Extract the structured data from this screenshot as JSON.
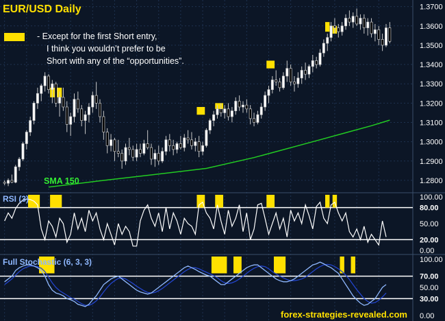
{
  "header": {
    "title": "EUR/USD   Daily"
  },
  "note": {
    "lines": [
      "-  Except for the first Short entry,",
      "I think you wouldn’t  prefer to be",
      "Short with any of the “opportunities”."
    ]
  },
  "labels": {
    "sma": "SMA 150",
    "rsi": "RSI (3)",
    "stochastic": "Full Stochastic (6, 3, 3)",
    "watermark": "forex-strategies-revealed.com"
  },
  "colors": {
    "background": "#0c1626",
    "grid": "#1e3250",
    "up_candle": "#ffffff",
    "down_candle": "#000000",
    "highlight": "#ffe000",
    "sma": "#22cc22",
    "rsi_line": "#ffffff",
    "stoch_k": "#8fb8ff",
    "stoch_d": "#2244cc",
    "axis_text": "#ffffff"
  },
  "chart_data": [
    {
      "type": "candlestick",
      "title": "EUR/USD   Daily",
      "ylim": [
        1.275,
        1.372
      ],
      "y_ticks": [
        "1.3700",
        "1.3600",
        "1.3500",
        "1.3400",
        "1.3300",
        "1.3200",
        "1.3100",
        "1.3000",
        "1.2900",
        "1.2800"
      ],
      "sma_series_name": "SMA 150",
      "sma_anchor_points": [
        [
          12,
          1.2765
        ],
        [
          25,
          1.2795
        ],
        [
          40,
          1.2828
        ],
        [
          55,
          1.2862
        ],
        [
          68,
          1.2918
        ],
        [
          85,
          1.3005
        ],
        [
          100,
          1.3083
        ],
        [
          105,
          1.3112
        ]
      ],
      "ohlc": [
        [
          1.279,
          1.28,
          1.2775,
          1.2785
        ],
        [
          1.2785,
          1.281,
          1.277,
          1.28
        ],
        [
          1.28,
          1.283,
          1.2785,
          1.279
        ],
        [
          1.279,
          1.288,
          1.2785,
          1.287
        ],
        [
          1.287,
          1.292,
          1.285,
          1.291
        ],
        [
          1.291,
          1.3,
          1.29,
          1.299
        ],
        [
          1.299,
          1.306,
          1.296,
          1.305
        ],
        [
          1.305,
          1.313,
          1.303,
          1.311
        ],
        [
          1.311,
          1.321,
          1.309,
          1.32
        ],
        [
          1.32,
          1.328,
          1.317,
          1.325
        ],
        [
          1.325,
          1.33,
          1.321,
          1.329
        ],
        [
          1.329,
          1.336,
          1.326,
          1.334
        ],
        [
          1.334,
          1.335,
          1.325,
          1.327
        ],
        [
          1.327,
          1.332,
          1.32,
          1.33
        ],
        [
          1.33,
          1.331,
          1.318,
          1.32
        ],
        [
          1.32,
          1.326,
          1.313,
          1.323
        ],
        [
          1.323,
          1.328,
          1.316,
          1.318
        ],
        [
          1.318,
          1.321,
          1.305,
          1.309
        ],
        [
          1.309,
          1.315,
          1.303,
          1.313
        ],
        [
          1.313,
          1.325,
          1.31,
          1.322
        ],
        [
          1.322,
          1.326,
          1.315,
          1.317
        ],
        [
          1.317,
          1.319,
          1.308,
          1.311
        ],
        [
          1.311,
          1.316,
          1.304,
          1.314
        ],
        [
          1.314,
          1.32,
          1.31,
          1.318
        ],
        [
          1.318,
          1.326,
          1.315,
          1.324
        ],
        [
          1.324,
          1.331,
          1.317,
          1.32
        ],
        [
          1.32,
          1.322,
          1.31,
          1.313
        ],
        [
          1.313,
          1.316,
          1.301,
          1.305
        ],
        [
          1.305,
          1.307,
          1.294,
          1.298
        ],
        [
          1.298,
          1.304,
          1.295,
          1.301
        ],
        [
          1.301,
          1.302,
          1.29,
          1.295
        ],
        [
          1.295,
          1.301,
          1.292,
          1.294
        ],
        [
          1.294,
          1.296,
          1.286,
          1.29
        ],
        [
          1.29,
          1.299,
          1.288,
          1.297
        ],
        [
          1.297,
          1.302,
          1.293,
          1.296
        ],
        [
          1.296,
          1.298,
          1.29,
          1.292
        ],
        [
          1.292,
          1.299,
          1.29,
          1.296
        ],
        [
          1.296,
          1.299,
          1.292,
          1.294
        ],
        [
          1.294,
          1.301,
          1.293,
          1.299
        ],
        [
          1.299,
          1.306,
          1.296,
          1.297
        ],
        [
          1.297,
          1.299,
          1.288,
          1.291
        ],
        [
          1.291,
          1.296,
          1.287,
          1.294
        ],
        [
          1.294,
          1.298,
          1.288,
          1.29
        ],
        [
          1.29,
          1.297,
          1.289,
          1.295
        ],
        [
          1.295,
          1.303,
          1.293,
          1.301
        ],
        [
          1.301,
          1.304,
          1.295,
          1.298
        ],
        [
          1.298,
          1.301,
          1.293,
          1.296
        ],
        [
          1.296,
          1.3,
          1.294,
          1.299
        ],
        [
          1.299,
          1.303,
          1.296,
          1.297
        ],
        [
          1.297,
          1.304,
          1.295,
          1.302
        ],
        [
          1.302,
          1.306,
          1.299,
          1.301
        ],
        [
          1.301,
          1.305,
          1.296,
          1.298
        ],
        [
          1.298,
          1.302,
          1.295,
          1.3
        ],
        [
          1.3,
          1.303,
          1.292,
          1.295
        ],
        [
          1.295,
          1.3,
          1.293,
          1.298
        ],
        [
          1.298,
          1.307,
          1.297,
          1.306
        ],
        [
          1.306,
          1.312,
          1.304,
          1.311
        ],
        [
          1.311,
          1.316,
          1.308,
          1.314
        ],
        [
          1.314,
          1.319,
          1.312,
          1.317
        ],
        [
          1.317,
          1.32,
          1.313,
          1.315
        ],
        [
          1.315,
          1.319,
          1.312,
          1.317
        ],
        [
          1.317,
          1.32,
          1.311,
          1.313
        ],
        [
          1.313,
          1.318,
          1.31,
          1.316
        ],
        [
          1.316,
          1.323,
          1.314,
          1.321
        ],
        [
          1.321,
          1.324,
          1.316,
          1.318
        ],
        [
          1.318,
          1.321,
          1.315,
          1.319
        ],
        [
          1.319,
          1.322,
          1.315,
          1.317
        ],
        [
          1.317,
          1.319,
          1.309,
          1.312
        ],
        [
          1.312,
          1.315,
          1.308,
          1.31
        ],
        [
          1.31,
          1.316,
          1.309,
          1.314
        ],
        [
          1.314,
          1.32,
          1.312,
          1.318
        ],
        [
          1.318,
          1.326,
          1.316,
          1.324
        ],
        [
          1.324,
          1.329,
          1.32,
          1.327
        ],
        [
          1.327,
          1.334,
          1.325,
          1.332
        ],
        [
          1.332,
          1.337,
          1.329,
          1.331
        ],
        [
          1.331,
          1.333,
          1.326,
          1.328
        ],
        [
          1.328,
          1.336,
          1.327,
          1.334
        ],
        [
          1.334,
          1.342,
          1.331,
          1.338
        ],
        [
          1.338,
          1.34,
          1.329,
          1.331
        ],
        [
          1.331,
          1.334,
          1.326,
          1.33
        ],
        [
          1.33,
          1.336,
          1.328,
          1.333
        ],
        [
          1.333,
          1.339,
          1.33,
          1.337
        ],
        [
          1.337,
          1.341,
          1.332,
          1.335
        ],
        [
          1.335,
          1.34,
          1.333,
          1.339
        ],
        [
          1.339,
          1.345,
          1.336,
          1.342
        ],
        [
          1.342,
          1.344,
          1.338,
          1.34
        ],
        [
          1.34,
          1.348,
          1.339,
          1.346
        ],
        [
          1.346,
          1.353,
          1.344,
          1.351
        ],
        [
          1.351,
          1.356,
          1.347,
          1.354
        ],
        [
          1.354,
          1.362,
          1.352,
          1.36
        ],
        [
          1.36,
          1.364,
          1.356,
          1.359
        ],
        [
          1.359,
          1.361,
          1.354,
          1.357
        ],
        [
          1.357,
          1.362,
          1.355,
          1.36
        ],
        [
          1.36,
          1.366,
          1.358,
          1.364
        ],
        [
          1.364,
          1.368,
          1.36,
          1.362
        ],
        [
          1.362,
          1.367,
          1.359,
          1.365
        ],
        [
          1.365,
          1.369,
          1.36,
          1.361
        ],
        [
          1.361,
          1.366,
          1.358,
          1.364
        ],
        [
          1.364,
          1.366,
          1.356,
          1.359
        ],
        [
          1.359,
          1.364,
          1.355,
          1.362
        ],
        [
          1.362,
          1.364,
          1.354,
          1.356
        ],
        [
          1.356,
          1.361,
          1.352,
          1.358
        ],
        [
          1.358,
          1.36,
          1.35,
          1.353
        ],
        [
          1.353,
          1.356,
          1.347,
          1.35
        ],
        [
          1.35,
          1.361,
          1.349,
          1.359
        ],
        [
          1.359,
          1.362,
          1.351,
          1.352
        ]
      ],
      "highlights": [
        {
          "from": 13,
          "to": 15,
          "low": 1.323,
          "high": 1.328
        },
        {
          "from": 53,
          "to": 54,
          "low": 1.314,
          "high": 1.318
        },
        {
          "from": 58,
          "to": 59,
          "low": 1.317,
          "high": 1.32
        },
        {
          "from": 72,
          "to": 73,
          "low": 1.338,
          "high": 1.342
        },
        {
          "from": 88,
          "to": 88,
          "low": 1.357,
          "high": 1.362
        },
        {
          "from": 90,
          "to": 90,
          "low": 1.356,
          "high": 1.36
        }
      ]
    },
    {
      "type": "line",
      "title": "RSI (3)",
      "ylim": [
        0,
        100
      ],
      "y_ticks": [
        "100.00",
        "80.00",
        "50.00",
        "20.00",
        "0.00"
      ],
      "levels": [
        80,
        20
      ],
      "values": [
        55,
        70,
        60,
        78,
        88,
        94,
        96,
        95,
        92,
        85,
        40,
        20,
        55,
        45,
        25,
        60,
        50,
        15,
        30,
        70,
        40,
        60,
        35,
        75,
        55,
        70,
        40,
        20,
        50,
        30,
        10,
        50,
        30,
        45,
        35,
        8,
        8,
        55,
        75,
        85,
        60,
        45,
        70,
        35,
        80,
        40,
        70,
        55,
        30,
        60,
        50,
        45,
        30,
        85,
        90,
        70,
        60,
        40,
        85,
        55,
        30,
        75,
        45,
        60,
        85,
        35,
        70,
        20,
        40,
        85,
        88,
        60,
        30,
        50,
        70,
        40,
        60,
        25,
        75,
        55,
        70,
        50,
        85,
        65,
        40,
        82,
        90,
        60,
        50,
        85,
        90,
        70,
        55,
        70,
        35,
        25,
        40,
        20,
        45,
        15,
        30,
        20,
        10,
        55,
        25
      ]
    },
    {
      "type": "line",
      "title": "Full Stochastic (6, 3, 3)",
      "ylim": [
        0,
        100
      ],
      "y_ticks": [
        "100.00",
        "70.00",
        "50.00",
        "30.00",
        "0.00"
      ],
      "levels": [
        70,
        30
      ],
      "k_values": [
        60,
        65,
        70,
        80,
        85,
        88,
        90,
        90,
        88,
        85,
        80,
        70,
        55,
        45,
        40,
        38,
        35,
        30,
        28,
        25,
        20,
        18,
        16,
        20,
        28,
        35,
        45,
        55,
        60,
        65,
        68,
        70,
        65,
        60,
        55,
        50,
        45,
        42,
        40,
        38,
        40,
        45,
        50,
        55,
        60,
        65,
        70,
        75,
        80,
        85,
        88,
        85,
        82,
        78,
        75,
        72,
        70,
        65,
        60,
        55,
        55,
        60,
        65,
        70,
        75,
        80,
        85,
        88,
        90,
        90,
        85,
        80,
        75,
        70,
        65,
        62,
        60,
        60,
        62,
        65,
        70,
        75,
        80,
        85,
        90,
        92,
        95,
        92,
        88,
        85,
        80,
        75,
        65,
        55,
        45,
        35,
        28,
        22,
        18,
        20,
        25,
        30,
        40,
        50,
        55
      ],
      "d_values": [
        55,
        60,
        65,
        72,
        78,
        83,
        86,
        88,
        88,
        87,
        84,
        78,
        68,
        58,
        50,
        44,
        40,
        36,
        32,
        29,
        25,
        21,
        18,
        18,
        21,
        26,
        33,
        42,
        50,
        57,
        62,
        66,
        67,
        65,
        61,
        57,
        52,
        48,
        44,
        41,
        40,
        41,
        44,
        48,
        53,
        58,
        63,
        68,
        73,
        78,
        82,
        85,
        85,
        83,
        80,
        77,
        74,
        71,
        67,
        62,
        58,
        57,
        58,
        61,
        65,
        70,
        75,
        80,
        84,
        87,
        88,
        87,
        83,
        78,
        74,
        70,
        67,
        64,
        62,
        62,
        63,
        65,
        68,
        73,
        78,
        83,
        87,
        90,
        91,
        90,
        87,
        83,
        78,
        72,
        64,
        55,
        46,
        38,
        30,
        25,
        22,
        23,
        27,
        33,
        40
      ]
    }
  ]
}
